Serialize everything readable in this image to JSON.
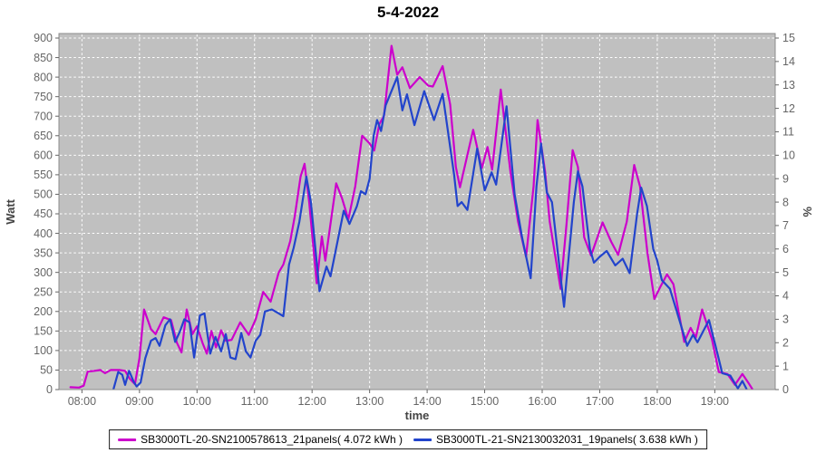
{
  "title": "5-4-2022",
  "axis_labels": {
    "left": "Watt",
    "bottom": "time",
    "right": "%"
  },
  "legend": {
    "items": [
      {
        "label": "SB3000TL-20-SN2100578613_21panels( 4.072 kWh )",
        "color": "#cc00cc"
      },
      {
        "label": "SB3000TL-21-SN2130032031_19panels( 3.638 kWh )",
        "color": "#2244cc"
      }
    ]
  },
  "chart_data": {
    "type": "line",
    "title": "5-4-2022",
    "xlabel": "time",
    "ylabel_left": "Watt",
    "ylabel_right": "%",
    "x_domain_hours": [
      7.6,
      20.05
    ],
    "x_tick_hours": [
      8,
      9,
      10,
      11,
      12,
      13,
      14,
      15,
      16,
      17,
      18,
      19
    ],
    "x_ticks": [
      "08:00",
      "09:00",
      "10:00",
      "11:00",
      "12:00",
      "13:00",
      "14:00",
      "15:00",
      "16:00",
      "17:00",
      "18:00",
      "19:00"
    ],
    "y_left_range": [
      0,
      900
    ],
    "y_left_step": 50,
    "y_right_range": [
      0,
      15
    ],
    "y_right_step": 1,
    "grid": true,
    "legend_position": "bottom",
    "plot_bg": "#c0c0c0",
    "grid_color": "#ffffff",
    "border_color": "#8c8c8c",
    "series": [
      {
        "name": "SB3000TL-20-SN2100578613_21panels( 4.072 kWh )",
        "color": "#cc00cc",
        "energy_kwh": "4.072",
        "points": [
          [
            7.8,
            6
          ],
          [
            7.95,
            5
          ],
          [
            8.03,
            10
          ],
          [
            8.1,
            46
          ],
          [
            8.22,
            48
          ],
          [
            8.32,
            50
          ],
          [
            8.4,
            42
          ],
          [
            8.5,
            50
          ],
          [
            8.65,
            50
          ],
          [
            8.75,
            48
          ],
          [
            8.83,
            28
          ],
          [
            8.92,
            14
          ],
          [
            9.0,
            80
          ],
          [
            9.08,
            205
          ],
          [
            9.2,
            155
          ],
          [
            9.28,
            142
          ],
          [
            9.42,
            185
          ],
          [
            9.55,
            178
          ],
          [
            9.65,
            120
          ],
          [
            9.73,
            95
          ],
          [
            9.82,
            205
          ],
          [
            9.92,
            142
          ],
          [
            10.0,
            162
          ],
          [
            10.1,
            118
          ],
          [
            10.17,
            92
          ],
          [
            10.25,
            150
          ],
          [
            10.33,
            108
          ],
          [
            10.42,
            152
          ],
          [
            10.5,
            125
          ],
          [
            10.6,
            127
          ],
          [
            10.75,
            172
          ],
          [
            10.9,
            140
          ],
          [
            11.02,
            180
          ],
          [
            11.15,
            250
          ],
          [
            11.28,
            225
          ],
          [
            11.42,
            300
          ],
          [
            11.5,
            320
          ],
          [
            11.62,
            380
          ],
          [
            11.7,
            445
          ],
          [
            11.8,
            545
          ],
          [
            11.87,
            578
          ],
          [
            11.95,
            480
          ],
          [
            12.08,
            272
          ],
          [
            12.17,
            392
          ],
          [
            12.23,
            330
          ],
          [
            12.42,
            528
          ],
          [
            12.52,
            490
          ],
          [
            12.63,
            436
          ],
          [
            12.75,
            520
          ],
          [
            12.87,
            650
          ],
          [
            13.0,
            630
          ],
          [
            13.08,
            612
          ],
          [
            13.17,
            680
          ],
          [
            13.25,
            700
          ],
          [
            13.38,
            880
          ],
          [
            13.48,
            806
          ],
          [
            13.57,
            825
          ],
          [
            13.7,
            772
          ],
          [
            13.87,
            800
          ],
          [
            14.02,
            778
          ],
          [
            14.1,
            776
          ],
          [
            14.27,
            828
          ],
          [
            14.4,
            730
          ],
          [
            14.5,
            570
          ],
          [
            14.57,
            518
          ],
          [
            14.8,
            665
          ],
          [
            14.95,
            567
          ],
          [
            15.05,
            621
          ],
          [
            15.13,
            563
          ],
          [
            15.28,
            768
          ],
          [
            15.45,
            555
          ],
          [
            15.58,
            430
          ],
          [
            15.72,
            340
          ],
          [
            15.85,
            520
          ],
          [
            15.92,
            690
          ],
          [
            16.05,
            558
          ],
          [
            16.13,
            430
          ],
          [
            16.32,
            258
          ],
          [
            16.42,
            420
          ],
          [
            16.53,
            613
          ],
          [
            16.62,
            570
          ],
          [
            16.73,
            390
          ],
          [
            16.85,
            343
          ],
          [
            17.05,
            428
          ],
          [
            17.2,
            378
          ],
          [
            17.32,
            345
          ],
          [
            17.47,
            430
          ],
          [
            17.6,
            575
          ],
          [
            17.7,
            520
          ],
          [
            17.83,
            350
          ],
          [
            17.95,
            232
          ],
          [
            18.05,
            262
          ],
          [
            18.17,
            295
          ],
          [
            18.28,
            270
          ],
          [
            18.47,
            122
          ],
          [
            18.58,
            158
          ],
          [
            18.67,
            133
          ],
          [
            18.78,
            205
          ],
          [
            18.95,
            129
          ],
          [
            19.07,
            45
          ],
          [
            19.22,
            40
          ],
          [
            19.35,
            12
          ],
          [
            19.48,
            40
          ],
          [
            19.58,
            18
          ],
          [
            19.65,
            2
          ]
        ]
      },
      {
        "name": "SB3000TL-21-SN2130032031_19panels( 3.638 kWh )",
        "color": "#2244cc",
        "energy_kwh": "3.638",
        "points": [
          [
            8.55,
            2
          ],
          [
            8.63,
            45
          ],
          [
            8.7,
            38
          ],
          [
            8.75,
            12
          ],
          [
            8.82,
            48
          ],
          [
            8.9,
            20
          ],
          [
            8.95,
            8
          ],
          [
            9.02,
            18
          ],
          [
            9.1,
            80
          ],
          [
            9.2,
            125
          ],
          [
            9.28,
            132
          ],
          [
            9.35,
            112
          ],
          [
            9.45,
            165
          ],
          [
            9.53,
            180
          ],
          [
            9.62,
            122
          ],
          [
            9.7,
            148
          ],
          [
            9.78,
            180
          ],
          [
            9.87,
            172
          ],
          [
            9.95,
            82
          ],
          [
            10.05,
            190
          ],
          [
            10.13,
            195
          ],
          [
            10.23,
            92
          ],
          [
            10.32,
            135
          ],
          [
            10.42,
            98
          ],
          [
            10.5,
            142
          ],
          [
            10.58,
            82
          ],
          [
            10.67,
            78
          ],
          [
            10.77,
            145
          ],
          [
            10.85,
            98
          ],
          [
            10.93,
            82
          ],
          [
            11.02,
            125
          ],
          [
            11.1,
            140
          ],
          [
            11.18,
            200
          ],
          [
            11.3,
            205
          ],
          [
            11.42,
            195
          ],
          [
            11.5,
            188
          ],
          [
            11.6,
            320
          ],
          [
            11.68,
            363
          ],
          [
            11.78,
            430
          ],
          [
            11.9,
            545
          ],
          [
            11.98,
            480
          ],
          [
            12.13,
            252
          ],
          [
            12.25,
            315
          ],
          [
            12.32,
            290
          ],
          [
            12.55,
            458
          ],
          [
            12.65,
            424
          ],
          [
            12.78,
            470
          ],
          [
            12.85,
            508
          ],
          [
            12.93,
            500
          ],
          [
            13.0,
            540
          ],
          [
            13.07,
            650
          ],
          [
            13.13,
            690
          ],
          [
            13.2,
            662
          ],
          [
            13.28,
            728
          ],
          [
            13.48,
            800
          ],
          [
            13.57,
            715
          ],
          [
            13.65,
            756
          ],
          [
            13.78,
            677
          ],
          [
            13.95,
            764
          ],
          [
            14.12,
            690
          ],
          [
            14.27,
            757
          ],
          [
            14.47,
            549
          ],
          [
            14.53,
            470
          ],
          [
            14.6,
            480
          ],
          [
            14.7,
            460
          ],
          [
            14.87,
            617
          ],
          [
            15.0,
            510
          ],
          [
            15.12,
            556
          ],
          [
            15.2,
            525
          ],
          [
            15.38,
            725
          ],
          [
            15.52,
            500
          ],
          [
            15.65,
            390
          ],
          [
            15.8,
            285
          ],
          [
            15.9,
            520
          ],
          [
            15.98,
            630
          ],
          [
            16.08,
            505
          ],
          [
            16.17,
            480
          ],
          [
            16.38,
            212
          ],
          [
            16.55,
            480
          ],
          [
            16.62,
            559
          ],
          [
            16.7,
            520
          ],
          [
            16.83,
            360
          ],
          [
            16.9,
            325
          ],
          [
            17.0,
            340
          ],
          [
            17.12,
            355
          ],
          [
            17.27,
            318
          ],
          [
            17.4,
            335
          ],
          [
            17.52,
            298
          ],
          [
            17.65,
            450
          ],
          [
            17.72,
            517
          ],
          [
            17.82,
            470
          ],
          [
            17.93,
            360
          ],
          [
            18.0,
            330
          ],
          [
            18.08,
            280
          ],
          [
            18.22,
            258
          ],
          [
            18.52,
            112
          ],
          [
            18.62,
            140
          ],
          [
            18.7,
            121
          ],
          [
            18.9,
            178
          ],
          [
            19.02,
            108
          ],
          [
            19.13,
            42
          ],
          [
            19.27,
            36
          ],
          [
            19.4,
            3
          ],
          [
            19.48,
            22
          ],
          [
            19.55,
            2
          ]
        ]
      }
    ]
  }
}
